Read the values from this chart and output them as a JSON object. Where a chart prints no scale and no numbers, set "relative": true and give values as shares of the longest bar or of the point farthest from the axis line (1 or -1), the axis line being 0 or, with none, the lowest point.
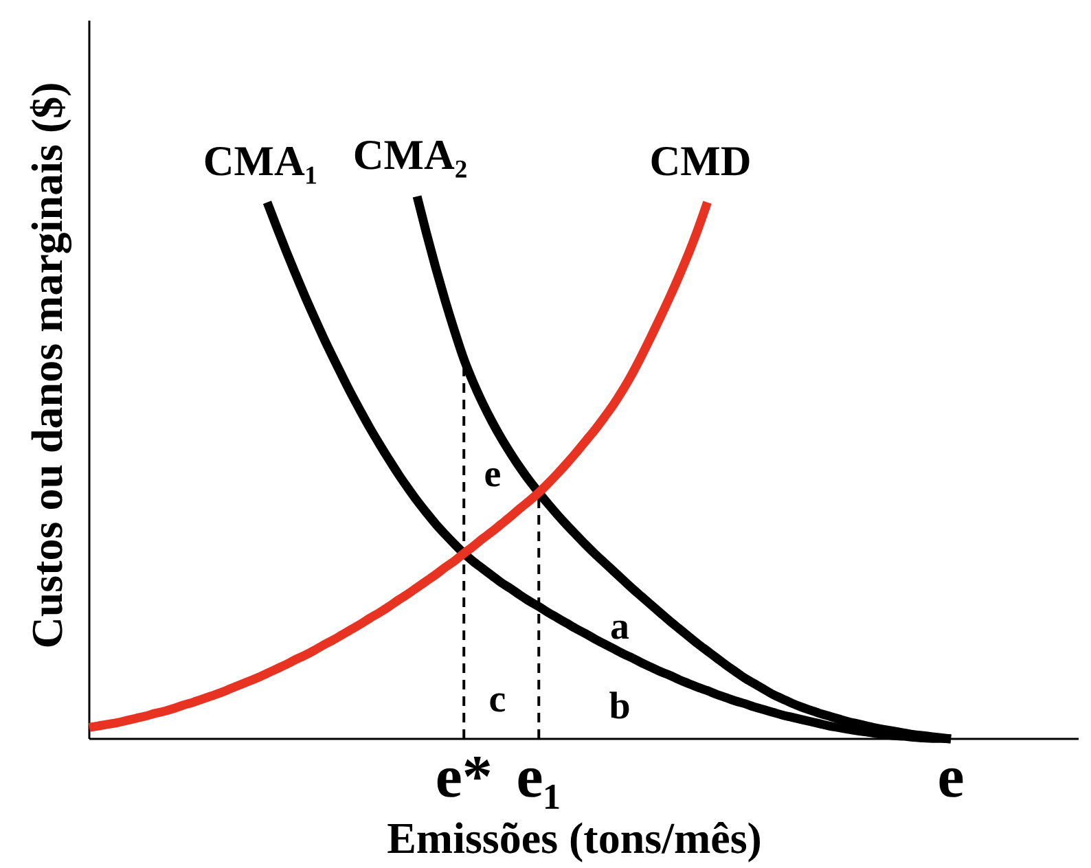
{
  "chart_data": {
    "type": "line",
    "relative": true,
    "xlabel": "Emissões (tons/mês)",
    "ylabel": "Custos ou danos marginais ($)",
    "categories": [
      null,
      null,
      null,
      null,
      null,
      null,
      null,
      null,
      null,
      null,
      null,
      null,
      null,
      null,
      null,
      null,
      null,
      null,
      null,
      null,
      null,
      null,
      null,
      null,
      null,
      null,
      null,
      null,
      null,
      null,
      null,
      null,
      null,
      null,
      null,
      null,
      null,
      null,
      null,
      null,
      "e*",
      null,
      null,
      null,
      null,
      null,
      null,
      null,
      "e₁",
      null,
      null,
      null,
      null,
      null,
      null,
      null,
      null,
      null,
      null,
      null,
      null,
      null,
      null,
      null,
      null,
      null,
      null,
      null,
      null,
      null,
      null,
      null,
      null,
      null,
      null,
      null,
      null,
      null,
      null,
      null,
      null,
      null,
      null,
      null,
      null,
      null,
      null,
      null,
      null,
      null,
      null,
      null,
      "e"
    ],
    "tick_labels": "x",
    "series": [
      {
        "name": "CMA₁",
        "color": "#000000",
        "values": [
          null,
          null,
          null,
          null,
          null,
          null,
          null,
          null,
          null,
          null,
          null,
          null,
          null,
          null,
          null,
          null,
          null,
          null,
          null,
          0.989,
          0.944,
          0.9,
          0.858,
          0.817,
          0.778,
          0.74,
          0.704,
          0.669,
          0.635,
          0.603,
          0.572,
          0.543,
          0.515,
          0.488,
          0.463,
          0.439,
          0.417,
          0.396,
          0.377,
          0.359,
          0.342,
          0.327,
          0.314,
          0.301,
          0.288,
          0.277,
          0.265,
          0.254,
          0.244,
          0.233,
          0.223,
          0.213,
          0.203,
          0.194,
          0.184,
          0.175,
          0.166,
          0.157,
          0.149,
          0.14,
          0.132,
          0.124,
          0.117,
          0.109,
          0.102,
          0.095,
          0.089,
          0.082,
          0.076,
          0.07,
          0.065,
          0.059,
          0.054,
          0.049,
          0.044,
          0.04,
          0.036,
          0.032,
          0.028,
          0.024,
          0.021,
          0.018,
          0.015,
          0.013,
          0.01,
          0.008,
          0.006,
          0.005,
          0.003,
          0.002,
          0.001,
          0.001,
          0
        ]
      },
      {
        "name": "CMA₂",
        "color": "#000000",
        "values": [
          null,
          null,
          null,
          null,
          null,
          null,
          null,
          null,
          null,
          null,
          null,
          null,
          null,
          null,
          null,
          null,
          null,
          null,
          null,
          null,
          null,
          null,
          null,
          null,
          null,
          null,
          null,
          null,
          null,
          null,
          null,
          null,
          null,
          null,
          null,
          1,
          0.932,
          0.868,
          0.808,
          0.752,
          0.7,
          0.657,
          0.619,
          0.585,
          0.554,
          0.526,
          0.5,
          0.476,
          0.454,
          0.433,
          0.413,
          0.394,
          0.376,
          0.358,
          0.341,
          0.325,
          0.309,
          0.293,
          0.277,
          0.262,
          0.247,
          0.232,
          0.217,
          0.203,
          0.189,
          0.175,
          0.162,
          0.149,
          0.136,
          0.124,
          0.112,
          0.102,
          0.092,
          0.082,
          0.074,
          0.066,
          0.059,
          0.053,
          0.047,
          0.042,
          0.037,
          0.032,
          0.028,
          0.024,
          0.02,
          0.017,
          0.014,
          0.011,
          0.008,
          0.006,
          0.004,
          0.002,
          0
        ]
      },
      {
        "name": "CMD",
        "color": "#e83323",
        "values": [
          0.021,
          0.024,
          0.027,
          0.03,
          0.034,
          0.038,
          0.042,
          0.047,
          0.051,
          0.056,
          0.062,
          0.067,
          0.073,
          0.079,
          0.085,
          0.092,
          0.099,
          0.106,
          0.113,
          0.121,
          0.129,
          0.137,
          0.146,
          0.154,
          0.163,
          0.173,
          0.182,
          0.192,
          0.202,
          0.212,
          0.223,
          0.233,
          0.244,
          0.256,
          0.267,
          0.279,
          0.291,
          0.303,
          0.316,
          0.328,
          0.342,
          0.355,
          0.369,
          0.382,
          0.396,
          0.41,
          0.425,
          0.439,
          0.454,
          0.471,
          0.489,
          0.508,
          0.528,
          0.549,
          0.57,
          0.593,
          0.617,
          0.644,
          0.674,
          0.707,
          0.742,
          0.778,
          0.815,
          0.854,
          0.895,
          0.94,
          0.989,
          null,
          null,
          null,
          null,
          null,
          null,
          null,
          null,
          null,
          null,
          null,
          null,
          null,
          null,
          null,
          null,
          null,
          null,
          null,
          null,
          null,
          null,
          null,
          null,
          null,
          null
        ]
      }
    ],
    "ref_lines": [
      {
        "axis": "x",
        "value": "e*",
        "color": "#000000",
        "line_style": "dashed"
      },
      {
        "axis": "x",
        "value": "e₁",
        "color": "#000000",
        "line_style": "dashed"
      }
    ],
    "annotations": [
      "e",
      "a",
      "c",
      "b"
    ]
  }
}
